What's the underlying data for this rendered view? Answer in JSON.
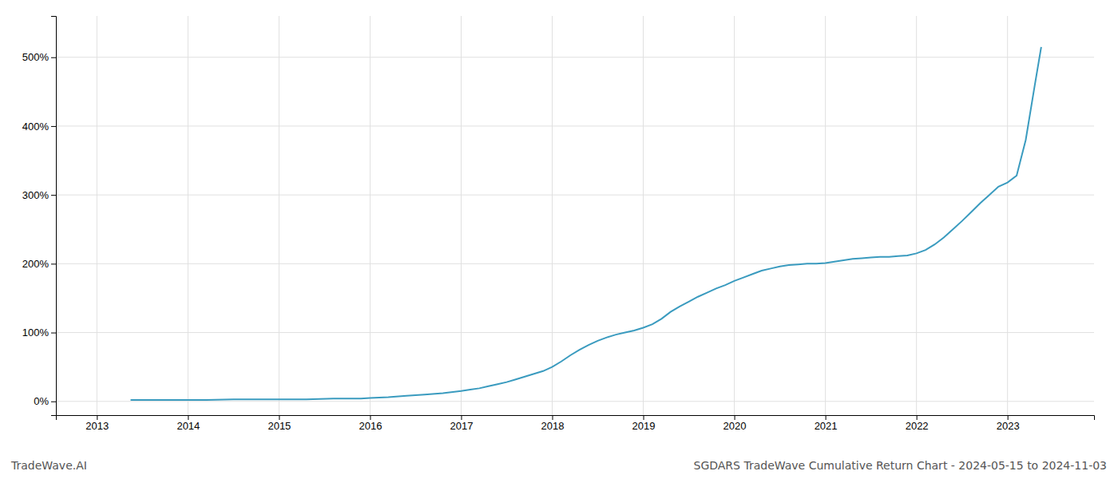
{
  "chart_data": {
    "type": "line",
    "title": "SGDARS TradeWave Cumulative Return Chart - 2024-05-15 to 2024-11-03",
    "annotations": [
      {
        "text": "TradeWave.AI"
      }
    ],
    "color": "#3a9bbf",
    "grid": true,
    "x": [
      2013.37,
      2013.7,
      2014.0,
      2014.2,
      2014.5,
      2014.8,
      2015.0,
      2015.3,
      2015.6,
      2015.9,
      2016.0,
      2016.2,
      2016.4,
      2016.6,
      2016.8,
      2017.0,
      2017.1,
      2017.2,
      2017.3,
      2017.4,
      2017.5,
      2017.6,
      2017.7,
      2017.8,
      2017.9,
      2018.0,
      2018.1,
      2018.2,
      2018.3,
      2018.4,
      2018.5,
      2018.6,
      2018.7,
      2018.8,
      2018.9,
      2019.0,
      2019.1,
      2019.2,
      2019.3,
      2019.4,
      2019.5,
      2019.6,
      2019.7,
      2019.8,
      2019.9,
      2020.0,
      2020.1,
      2020.2,
      2020.3,
      2020.4,
      2020.5,
      2020.6,
      2020.7,
      2020.8,
      2020.9,
      2021.0,
      2021.1,
      2021.2,
      2021.3,
      2021.4,
      2021.5,
      2021.6,
      2021.7,
      2021.8,
      2021.9,
      2022.0,
      2022.1,
      2022.2,
      2022.3,
      2022.4,
      2022.5,
      2022.6,
      2022.7,
      2022.8,
      2022.9,
      2023.0,
      2023.1,
      2023.2,
      2023.3,
      2023.37
    ],
    "values": [
      2,
      2,
      2,
      2,
      3,
      3,
      3,
      3,
      4,
      4,
      5,
      6,
      8,
      10,
      12,
      15,
      17,
      19,
      22,
      25,
      28,
      32,
      36,
      40,
      44,
      50,
      58,
      67,
      75,
      82,
      88,
      93,
      97,
      100,
      103,
      107,
      112,
      120,
      130,
      138,
      145,
      152,
      158,
      164,
      169,
      175,
      180,
      185,
      190,
      193,
      196,
      198,
      199,
      200,
      200,
      201,
      203,
      205,
      207,
      208,
      209,
      210,
      210,
      211,
      212,
      215,
      220,
      228,
      238,
      250,
      262,
      275,
      288,
      300,
      312,
      318,
      328,
      380,
      460,
      515
    ],
    "xlim": [
      2012.55,
      2023.95
    ],
    "xticks": [
      2013,
      2014,
      2015,
      2016,
      2017,
      2018,
      2019,
      2020,
      2021,
      2022,
      2023
    ],
    "ylim": [
      -20,
      560
    ],
    "yticks": [
      {
        "value": 0,
        "label": "0%"
      },
      {
        "value": 100,
        "label": "100%"
      },
      {
        "value": 200,
        "label": "200%"
      },
      {
        "value": 300,
        "label": "300%"
      },
      {
        "value": 400,
        "label": "400%"
      },
      {
        "value": 500,
        "label": "500%"
      }
    ]
  }
}
